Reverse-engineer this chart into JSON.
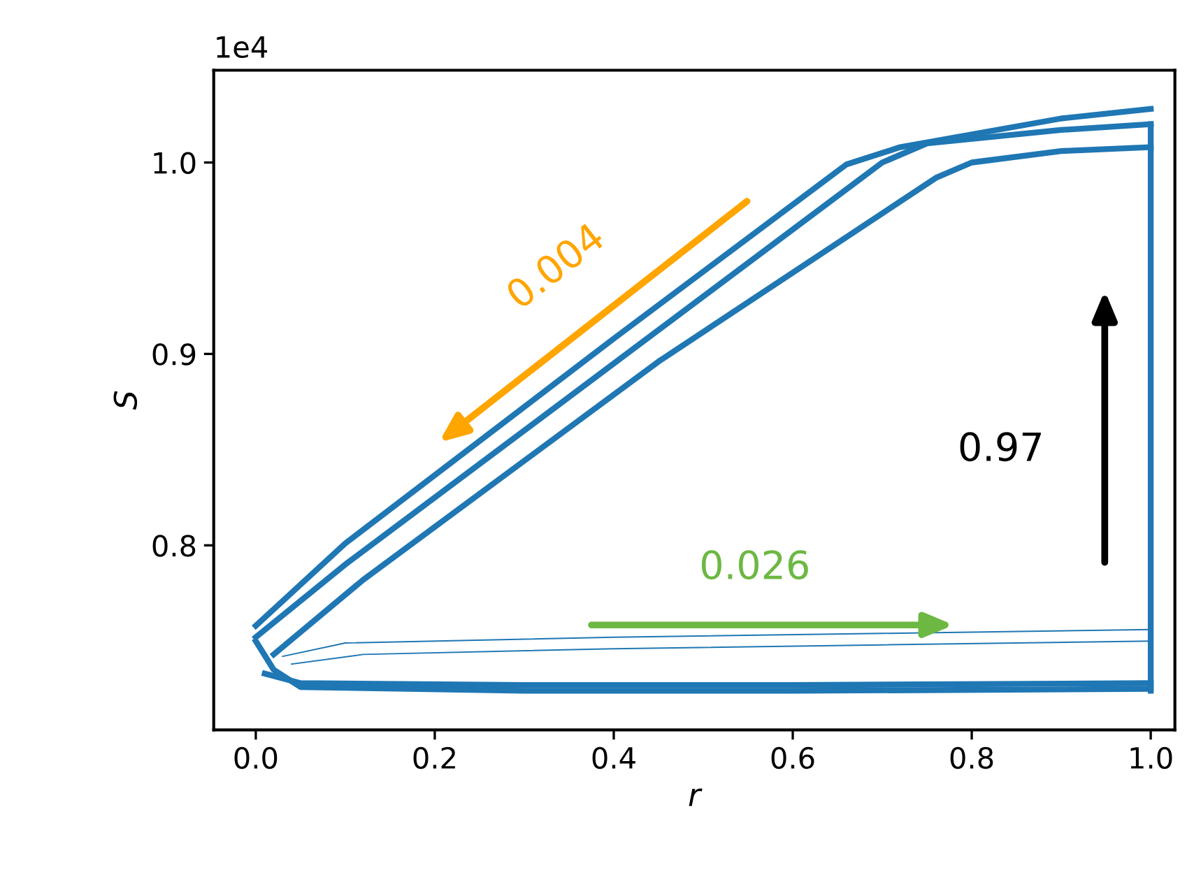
{
  "chart_data": {
    "type": "line",
    "xlabel": "r",
    "ylabel": "S",
    "xlim": [
      -0.047,
      1.027
    ],
    "ylim": [
      0.7036,
      1.0482
    ],
    "xticks": [
      {
        "value": 0,
        "label": "0.0"
      },
      0.2,
      0.4,
      0.6,
      0.8,
      {
        "value": 1,
        "label": "1.0"
      }
    ],
    "yticks": [
      0.8,
      0.9,
      {
        "value": 1,
        "label": "1.0"
      }
    ],
    "grid": false,
    "legend": false,
    "marker": "none",
    "line_style": "solid",
    "annotations": [
      "1e4",
      "0.004",
      "0.026",
      "0.97"
    ],
    "series": [
      {
        "color": "#1f77b4",
        "x": [
          0.0,
          0.02,
          0.05,
          0.3,
          0.6,
          1.0
        ],
        "values": [
          0.75,
          0.735,
          0.726,
          0.724,
          0.724,
          0.725
        ]
      },
      {
        "color": "#1f77b4",
        "x": [
          0.01,
          0.05,
          0.3,
          0.6,
          1.0
        ],
        "values": [
          0.733,
          0.728,
          0.727,
          0.727,
          0.728
        ]
      },
      {
        "color": "#1f77b4",
        "x": [
          0.0,
          0.1,
          0.4,
          0.7,
          0.75,
          0.9,
          1.0
        ],
        "values": [
          0.752,
          0.79,
          0.895,
          1.0,
          1.01,
          1.017,
          1.02
        ]
      },
      {
        "color": "#1f77b4",
        "x": [
          0.02,
          0.12,
          0.45,
          0.76,
          0.8,
          0.9,
          1.0
        ],
        "values": [
          0.743,
          0.782,
          0.896,
          0.992,
          1.0,
          1.006,
          1.008
        ]
      },
      {
        "color": "#1f77b4",
        "x": [
          0.0,
          0.1,
          0.4,
          0.66,
          0.72,
          0.9,
          1.0
        ],
        "values": [
          0.758,
          0.801,
          0.908,
          0.999,
          1.008,
          1.023,
          1.028
        ]
      },
      {
        "color": "#1f77b4",
        "x": [
          1.0,
          1.0
        ],
        "values": [
          0.724,
          1.02
        ]
      },
      {
        "color": "#1f77b4",
        "x": [
          0.03,
          0.1,
          0.4,
          0.7,
          1.0
        ],
        "values": [
          0.742,
          0.749,
          0.752,
          0.754,
          0.756
        ]
      },
      {
        "color": "#1f77b4",
        "x": [
          0.04,
          0.12,
          0.4,
          0.7,
          1.0
        ],
        "values": [
          0.738,
          0.743,
          0.746,
          0.748,
          0.75
        ]
      }
    ]
  }
}
